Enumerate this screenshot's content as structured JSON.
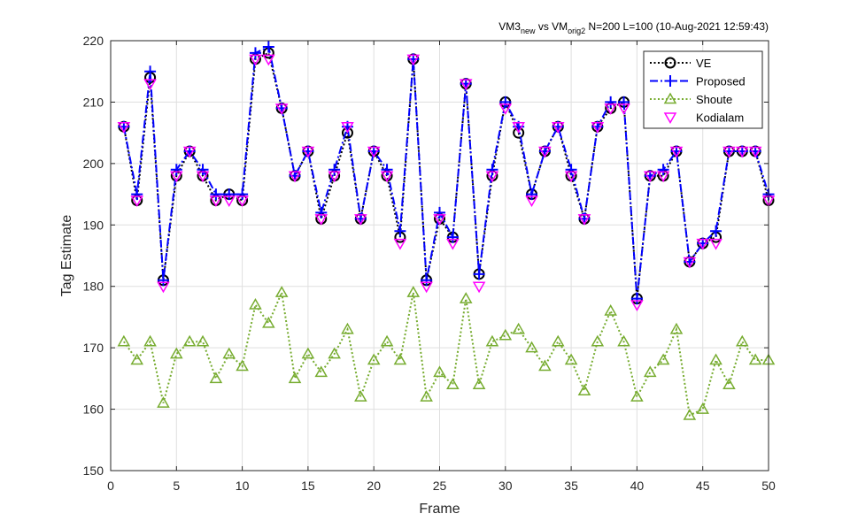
{
  "chart_data": {
    "type": "line",
    "title": {
      "p1": "VM3",
      "p1_sub": "new",
      "p2": " vs VM",
      "p2_sub": "orig2",
      "p3": " N=200 L=100 (10-Aug-2021 12:59:43)"
    },
    "xlabel": "Frame",
    "ylabel": "Tag Estimate",
    "xlim": [
      0,
      50
    ],
    "ylim": [
      150,
      220
    ],
    "xticks": [
      "0",
      "5",
      "10",
      "15",
      "20",
      "25",
      "30",
      "35",
      "40",
      "45",
      "50"
    ],
    "yticks": [
      "150",
      "160",
      "170",
      "180",
      "190",
      "200",
      "210",
      "220"
    ],
    "grid": true,
    "legend_position": "top-right",
    "x": [
      1,
      2,
      3,
      4,
      5,
      6,
      7,
      8,
      9,
      10,
      11,
      12,
      13,
      14,
      15,
      16,
      17,
      18,
      19,
      20,
      21,
      22,
      23,
      24,
      25,
      26,
      27,
      28,
      29,
      30,
      31,
      32,
      33,
      34,
      35,
      36,
      37,
      38,
      39,
      40,
      41,
      42,
      43,
      44,
      45,
      46,
      47,
      48,
      49,
      50
    ],
    "series": [
      {
        "name": "VE",
        "color": "#000000",
        "line": "dotted",
        "marker": "circle",
        "values": [
          206,
          194,
          214,
          181,
          198,
          202,
          198,
          194,
          195,
          194,
          217,
          218,
          209,
          198,
          202,
          191,
          198,
          205,
          191,
          202,
          198,
          188,
          217,
          181,
          191,
          188,
          213,
          182,
          198,
          210,
          205,
          195,
          202,
          206,
          198,
          191,
          206,
          209,
          210,
          178,
          198,
          198,
          202,
          184,
          187,
          188,
          202,
          202,
          202,
          194
        ]
      },
      {
        "name": "Proposed",
        "color": "#0000ff",
        "line": "dashdot",
        "marker": "plus",
        "values": [
          206,
          195,
          215,
          181,
          199,
          202,
          199,
          195,
          195,
          195,
          218,
          219,
          209,
          198,
          202,
          192,
          199,
          206,
          191,
          202,
          199,
          189,
          217,
          181,
          192,
          188,
          213,
          182,
          199,
          210,
          206,
          195,
          202,
          206,
          199,
          191,
          206,
          210,
          210,
          178,
          198,
          199,
          202,
          184,
          187,
          189,
          202,
          202,
          202,
          195
        ]
      },
      {
        "name": "Shoute",
        "color": "#77ac30",
        "line": "dotted",
        "marker": "triangle-up",
        "values": [
          171,
          168,
          171,
          161,
          169,
          171,
          171,
          165,
          169,
          167,
          177,
          174,
          179,
          165,
          169,
          166,
          169,
          173,
          162,
          168,
          171,
          168,
          179,
          162,
          166,
          164,
          178,
          164,
          171,
          172,
          173,
          170,
          167,
          171,
          168,
          163,
          171,
          176,
          171,
          162,
          166,
          168,
          173,
          159,
          160,
          168,
          164,
          171,
          168,
          168
        ]
      },
      {
        "name": "Kodialam",
        "color": "#ff00ff",
        "line": "none",
        "marker": "triangle-down",
        "values": [
          206,
          194,
          213,
          180,
          198,
          202,
          198,
          194,
          194,
          194,
          217,
          217,
          209,
          198,
          202,
          191,
          198,
          206,
          191,
          202,
          198,
          187,
          217,
          180,
          191,
          187,
          213,
          180,
          198,
          209,
          206,
          194,
          202,
          206,
          198,
          191,
          206,
          209,
          209,
          177,
          198,
          198,
          202,
          184,
          187,
          187,
          202,
          202,
          202,
          194
        ]
      }
    ]
  }
}
